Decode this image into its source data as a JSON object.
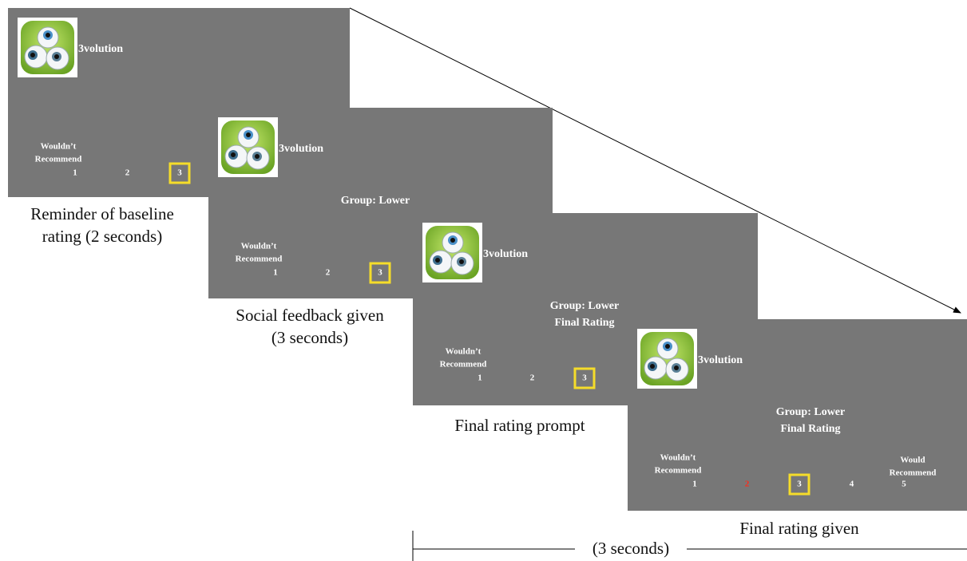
{
  "screens": [
    {
      "app_name": "3volution",
      "scale_left_label": [
        "Wouldn’t",
        "Recommend"
      ],
      "ratings": [
        1,
        2,
        3
      ],
      "selected": 3,
      "caption": [
        "Reminder of baseline",
        "rating (2 seconds)"
      ]
    },
    {
      "app_name": "3volution",
      "group_text": [
        "Group: Lower"
      ],
      "scale_left_label": [
        "Wouldn’t",
        "Recommend"
      ],
      "ratings": [
        1,
        2,
        3
      ],
      "selected": 3,
      "caption": [
        "Social feedback given",
        "(3 seconds)"
      ]
    },
    {
      "app_name": "3volution",
      "group_text": [
        "Group: Lower",
        "Final Rating"
      ],
      "scale_left_label": [
        "Wouldn’t",
        "Recommend"
      ],
      "ratings": [
        1,
        2,
        3
      ],
      "selected": 3,
      "caption": [
        "Final rating prompt"
      ]
    },
    {
      "app_name": "3volution",
      "group_text": [
        "Group: Lower",
        "Final Rating"
      ],
      "scale_left_label": [
        "Wouldn’t",
        "Recommend"
      ],
      "scale_right_label": [
        "Would",
        "Recommend"
      ],
      "ratings": [
        1,
        2,
        3,
        4,
        5
      ],
      "selected": 3,
      "marked_rating": 2,
      "marked_color": "#ff2a1a",
      "caption": [
        "Final rating given"
      ]
    }
  ],
  "timeline": {
    "duration_label": "(3 seconds)"
  }
}
